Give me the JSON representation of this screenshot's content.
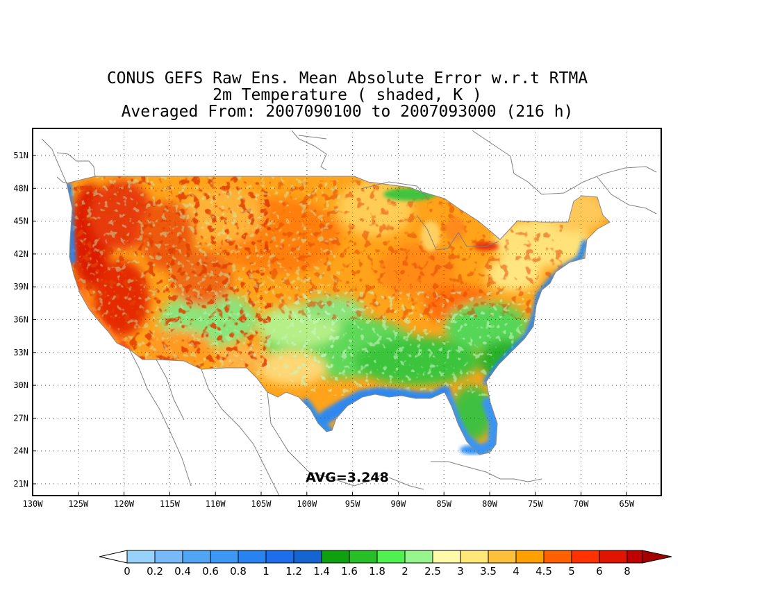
{
  "title": {
    "line1": "CONUS GEFS Raw Ens. Mean Absolute Error w.r.t RTMA",
    "line2": "2m Temperature ( shaded, K )",
    "line3": "Averaged From: 2007090100 to 2007093000 (216 h)"
  },
  "map": {
    "lon_labels": [
      "130W",
      "125W",
      "120W",
      "115W",
      "110W",
      "105W",
      "100W",
      "95W",
      "90W",
      "85W",
      "80W",
      "75W",
      "70W",
      "65W"
    ],
    "lat_labels": [
      "51N",
      "48N",
      "45N",
      "42N",
      "39N",
      "36N",
      "33N",
      "30N",
      "27N",
      "24N",
      "21N"
    ],
    "grid": true,
    "avg_label": "AVG=3.248"
  },
  "colorbar": {
    "labels": [
      "0",
      "0.2",
      "0.4",
      "0.6",
      "0.8",
      "1",
      "1.2",
      "1.4",
      "1.6",
      "1.8",
      "2",
      "2.5",
      "3",
      "3.5",
      "4",
      "4.5",
      "5",
      "6",
      "8"
    ],
    "colors": [
      "#96d2fa",
      "#78b9fa",
      "#50a5f5",
      "#3c97f5",
      "#2883f0",
      "#1e6eeb",
      "#1464d2",
      "#0fa00f",
      "#28be28",
      "#50f050",
      "#96f58c",
      "#fffaaa",
      "#ffe878",
      "#ffc03c",
      "#ffa000",
      "#ff6000",
      "#ff3200",
      "#e11400",
      "#c00000"
    ],
    "under_color": "#ffffff",
    "over_color": "#a50000"
  }
}
